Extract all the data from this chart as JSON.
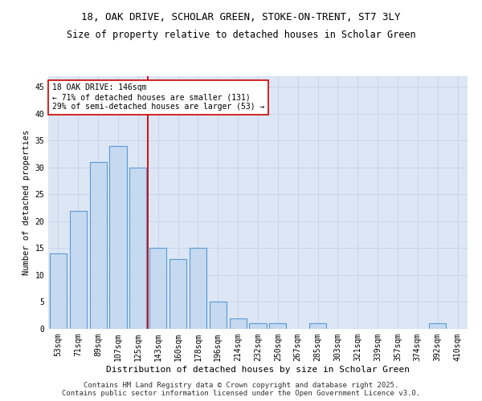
{
  "title": "18, OAK DRIVE, SCHOLAR GREEN, STOKE-ON-TRENT, ST7 3LY",
  "subtitle": "Size of property relative to detached houses in Scholar Green",
  "xlabel": "Distribution of detached houses by size in Scholar Green",
  "ylabel": "Number of detached properties",
  "bar_labels": [
    "53sqm",
    "71sqm",
    "89sqm",
    "107sqm",
    "125sqm",
    "143sqm",
    "160sqm",
    "178sqm",
    "196sqm",
    "214sqm",
    "232sqm",
    "250sqm",
    "267sqm",
    "285sqm",
    "303sqm",
    "321sqm",
    "339sqm",
    "357sqm",
    "374sqm",
    "392sqm",
    "410sqm"
  ],
  "bar_values": [
    14,
    22,
    31,
    34,
    30,
    15,
    13,
    15,
    5,
    2,
    1,
    1,
    0,
    1,
    0,
    0,
    0,
    0,
    0,
    1,
    0
  ],
  "bar_color": "#c5d9f0",
  "bar_edgecolor": "#5b9bd5",
  "bar_linewidth": 0.8,
  "vline_color": "#cc0000",
  "vline_label_title": "18 OAK DRIVE: 146sqm",
  "vline_label_line1": "← 71% of detached houses are smaller (131)",
  "vline_label_line2": "29% of semi-detached houses are larger (53) →",
  "annotation_box_edgecolor": "#cc0000",
  "annotation_box_facecolor": "white",
  "ylim": [
    0,
    47
  ],
  "yticks": [
    0,
    5,
    10,
    15,
    20,
    25,
    30,
    35,
    40,
    45
  ],
  "grid_color": "#c8d4e8",
  "background_color": "#dce6f5",
  "footer_line1": "Contains HM Land Registry data © Crown copyright and database right 2025.",
  "footer_line2": "Contains public sector information licensed under the Open Government Licence v3.0.",
  "title_fontsize": 9,
  "subtitle_fontsize": 8.5,
  "xlabel_fontsize": 8,
  "ylabel_fontsize": 7.5,
  "tick_fontsize": 7,
  "annotation_fontsize": 7,
  "footer_fontsize": 6.5
}
